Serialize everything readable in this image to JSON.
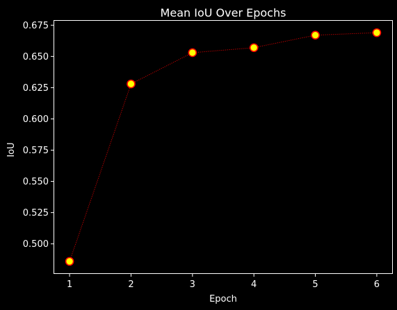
{
  "chart_data": {
    "type": "line",
    "title": "Mean IoU Over Epochs",
    "xlabel": "Epoch",
    "ylabel": "IoU",
    "x": [
      1,
      2,
      3,
      4,
      5,
      6
    ],
    "series": [
      {
        "values": [
          0.486,
          0.628,
          0.653,
          0.657,
          0.667,
          0.669
        ],
        "line_color": "#cc0000",
        "line_style": "dotted",
        "marker": "circle",
        "marker_face_color": "#ffff00",
        "marker_edge_color": "#ff0000"
      }
    ],
    "xticks": [
      1,
      2,
      3,
      4,
      5,
      6
    ],
    "yticks": [
      "0.500",
      "0.525",
      "0.550",
      "0.575",
      "0.600",
      "0.625",
      "0.650",
      "0.675"
    ],
    "xlim": [
      0.75,
      6.25
    ],
    "ylim": [
      0.4765,
      0.6785
    ],
    "grid": false,
    "background_color": "#000000",
    "foreground_color": "#ffffff"
  }
}
